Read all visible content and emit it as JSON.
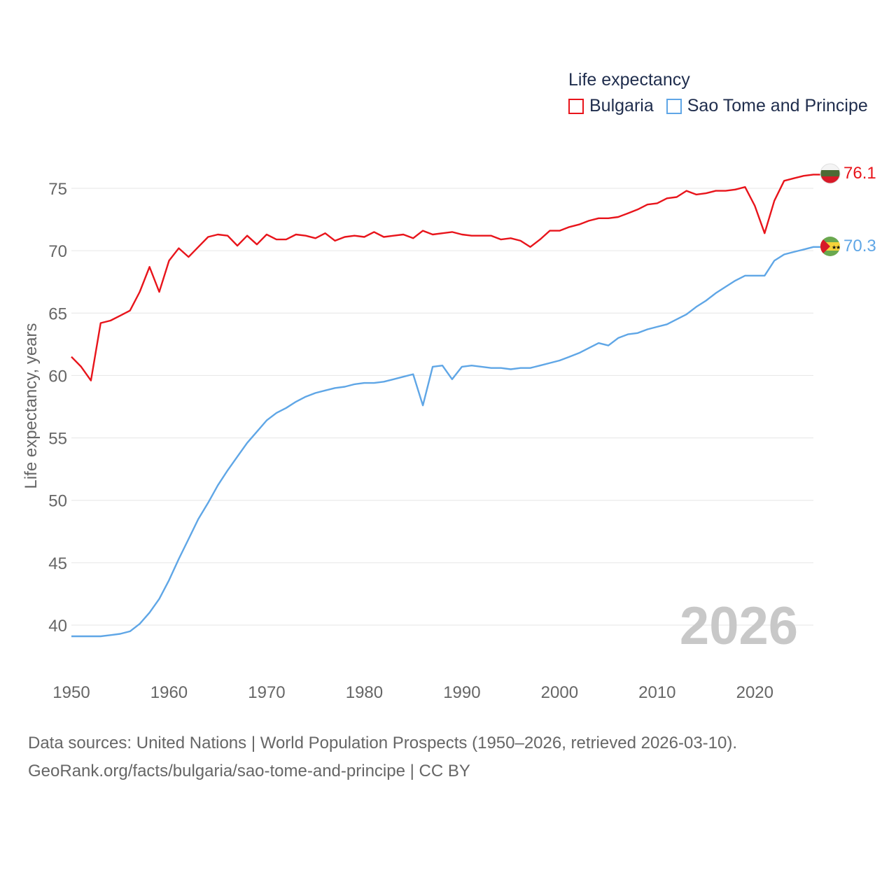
{
  "legend": {
    "title": "Life expectancy",
    "items": [
      {
        "label": "Bulgaria",
        "color": "#e8141b"
      },
      {
        "label": "Sao Tome and Principe",
        "color": "#5fa6e6"
      }
    ]
  },
  "year_watermark": "2026",
  "footer": {
    "line1": "Data sources: United Nations | World Population Prospects (1950–2026, retrieved 2026-03-10).",
    "line2": "GeoRank.org/facts/bulgaria/sao-tome-and-principe | CC BY"
  },
  "chart_data": {
    "type": "line",
    "title": "Life expectancy",
    "xlabel": "",
    "ylabel": "Life expectancy, years",
    "xlim": [
      1950,
      2026
    ],
    "ylim": [
      37,
      77.5
    ],
    "x_ticks": [
      1950,
      1960,
      1970,
      1980,
      1990,
      2000,
      2010,
      2020
    ],
    "y_ticks": [
      40,
      45,
      50,
      55,
      60,
      65,
      70,
      75
    ],
    "grid": true,
    "x": [
      1950,
      1951,
      1952,
      1953,
      1954,
      1955,
      1956,
      1957,
      1958,
      1959,
      1960,
      1961,
      1962,
      1963,
      1964,
      1965,
      1966,
      1967,
      1968,
      1969,
      1970,
      1971,
      1972,
      1973,
      1974,
      1975,
      1976,
      1977,
      1978,
      1979,
      1980,
      1981,
      1982,
      1983,
      1984,
      1985,
      1986,
      1987,
      1988,
      1989,
      1990,
      1991,
      1992,
      1993,
      1994,
      1995,
      1996,
      1997,
      1998,
      1999,
      2000,
      2001,
      2002,
      2003,
      2004,
      2005,
      2006,
      2007,
      2008,
      2009,
      2010,
      2011,
      2012,
      2013,
      2014,
      2015,
      2016,
      2017,
      2018,
      2019,
      2020,
      2021,
      2022,
      2023,
      2024,
      2025,
      2026
    ],
    "series": [
      {
        "name": "Bulgaria",
        "color": "#e8141b",
        "end_label": "76.1",
        "values": [
          61.5,
          60.7,
          59.6,
          64.2,
          64.4,
          64.8,
          65.2,
          66.7,
          68.7,
          66.7,
          69.2,
          70.2,
          69.5,
          70.3,
          71.1,
          71.3,
          71.2,
          70.4,
          71.2,
          70.5,
          71.3,
          70.9,
          70.9,
          71.3,
          71.2,
          71.0,
          71.4,
          70.8,
          71.1,
          71.2,
          71.1,
          71.5,
          71.1,
          71.2,
          71.3,
          71.0,
          71.6,
          71.3,
          71.4,
          71.5,
          71.3,
          71.2,
          71.2,
          71.2,
          70.9,
          71.0,
          70.8,
          70.3,
          70.9,
          71.6,
          71.6,
          71.9,
          72.1,
          72.4,
          72.6,
          72.6,
          72.7,
          73.0,
          73.3,
          73.7,
          73.8,
          74.2,
          74.3,
          74.8,
          74.5,
          74.6,
          74.8,
          74.8,
          74.9,
          75.1,
          73.6,
          71.4,
          74.0,
          75.6,
          75.8,
          76.0,
          76.1
        ]
      },
      {
        "name": "Sao Tome and Principe",
        "color": "#5fa6e6",
        "end_label": "70.3",
        "values": [
          39.1,
          39.1,
          39.1,
          39.1,
          39.2,
          39.3,
          39.5,
          40.1,
          41.0,
          42.1,
          43.6,
          45.3,
          46.9,
          48.5,
          49.8,
          51.2,
          52.4,
          53.5,
          54.6,
          55.5,
          56.4,
          57.0,
          57.4,
          57.9,
          58.3,
          58.6,
          58.8,
          59.0,
          59.1,
          59.3,
          59.4,
          59.4,
          59.5,
          59.7,
          59.9,
          60.1,
          57.6,
          60.7,
          60.8,
          59.7,
          60.7,
          60.8,
          60.7,
          60.6,
          60.6,
          60.5,
          60.6,
          60.6,
          60.8,
          61.0,
          61.2,
          61.5,
          61.8,
          62.2,
          62.6,
          62.4,
          63.0,
          63.3,
          63.4,
          63.7,
          63.9,
          64.1,
          64.5,
          64.9,
          65.5,
          66.0,
          66.6,
          67.1,
          67.6,
          68.0,
          68.0,
          68.0,
          69.2,
          69.7,
          69.9,
          70.1,
          70.3
        ]
      }
    ]
  }
}
